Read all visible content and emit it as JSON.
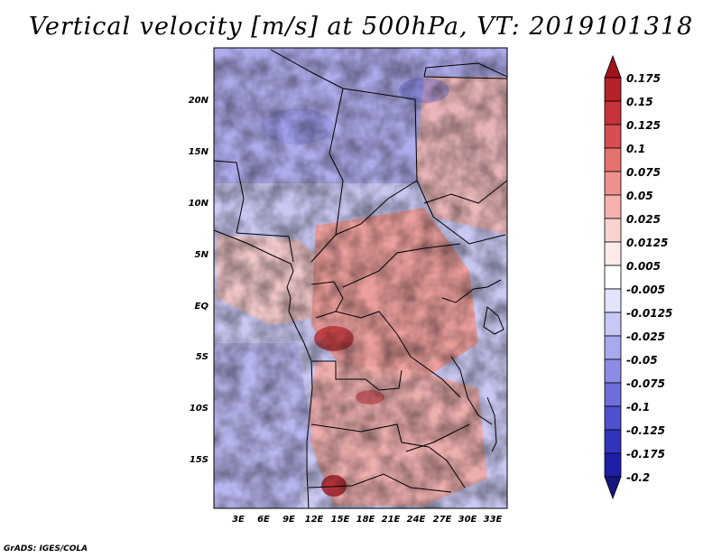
{
  "title": "Vertical velocity [m/s] at 500hPa, VT: 2019101318",
  "credit": "GrADS: IGES/COLA",
  "map": {
    "variable": "Vertical velocity",
    "units": "m/s",
    "level": "500hPa",
    "valid_time": "2019101318",
    "lat_labels": [
      "20N",
      "15N",
      "10N",
      "5N",
      "EQ",
      "5S",
      "10S",
      "15S"
    ],
    "lon_labels": [
      "3E",
      "6E",
      "9E",
      "12E",
      "15E",
      "18E",
      "21E",
      "24E",
      "27E",
      "30E",
      "33E"
    ]
  },
  "colorbar": {
    "labels": [
      "0.175",
      "0.15",
      "0.125",
      "0.1",
      "0.075",
      "0.05",
      "0.025",
      "0.0125",
      "0.005",
      "-0.005",
      "-0.0125",
      "-0.025",
      "-0.05",
      "-0.075",
      "-0.1",
      "-0.125",
      "-0.175",
      "-0.2"
    ],
    "colors": [
      "#a0141e",
      "#b52127",
      "#c8323a",
      "#d84d52",
      "#e5716f",
      "#ee918e",
      "#f5b2ad",
      "#fad3cf",
      "#fdebe9",
      "#ffffff",
      "#e3e4fb",
      "#c7c8f6",
      "#a8a9ef",
      "#8b8ce6",
      "#6d6edb",
      "#4f50cd",
      "#3233bd",
      "#1e1ea8",
      "#16167f"
    ]
  }
}
